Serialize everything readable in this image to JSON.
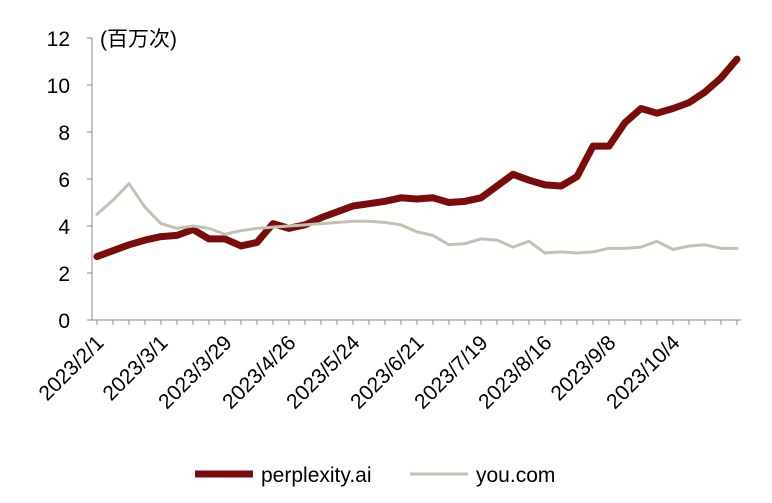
{
  "chart_data": {
    "type": "line",
    "annotation": "(百万次)",
    "categories": [
      "2023/2/1",
      null,
      null,
      null,
      "2023/3/1",
      null,
      null,
      null,
      "2023/3/29",
      null,
      null,
      null,
      "2023/4/26",
      null,
      null,
      null,
      "2023/5/24",
      null,
      null,
      null,
      "2023/6/21",
      null,
      null,
      null,
      "2023/7/19",
      null,
      null,
      null,
      "2023/8/16",
      null,
      null,
      null,
      "2023/9/8",
      null,
      null,
      null,
      "2023/10/4",
      null,
      null,
      null,
      null
    ],
    "series": [
      {
        "name": "perplexity.ai",
        "color": "#7b0c0c",
        "width": 7,
        "values": [
          2.7,
          2.95,
          3.2,
          3.4,
          3.55,
          3.6,
          3.85,
          3.45,
          3.45,
          3.15,
          3.3,
          4.1,
          3.9,
          4.05,
          4.35,
          4.6,
          4.85,
          4.95,
          5.05,
          5.2,
          5.15,
          5.2,
          5.0,
          5.05,
          5.2,
          5.7,
          6.2,
          5.95,
          5.75,
          5.7,
          6.1,
          7.4,
          7.4,
          8.4,
          9.0,
          8.8,
          9.0,
          9.25,
          9.7,
          10.3,
          11.1
        ]
      },
      {
        "name": "you.com",
        "color": "#c2c2b4",
        "width": 3,
        "values": [
          4.5,
          5.1,
          5.8,
          4.8,
          4.1,
          3.9,
          4.0,
          3.9,
          3.65,
          3.8,
          3.9,
          3.95,
          4.0,
          4.05,
          4.1,
          4.15,
          4.2,
          4.2,
          4.15,
          4.05,
          3.75,
          3.6,
          3.2,
          3.25,
          3.45,
          3.4,
          3.1,
          3.35,
          2.85,
          2.9,
          2.85,
          2.9,
          3.05,
          3.05,
          3.1,
          3.35,
          3.0,
          3.15,
          3.2,
          3.05,
          3.05
        ]
      }
    ],
    "ylim": [
      0,
      12
    ],
    "yticks": [
      0,
      2,
      4,
      6,
      8,
      10,
      12
    ],
    "grid": false,
    "legend": "bottom"
  }
}
